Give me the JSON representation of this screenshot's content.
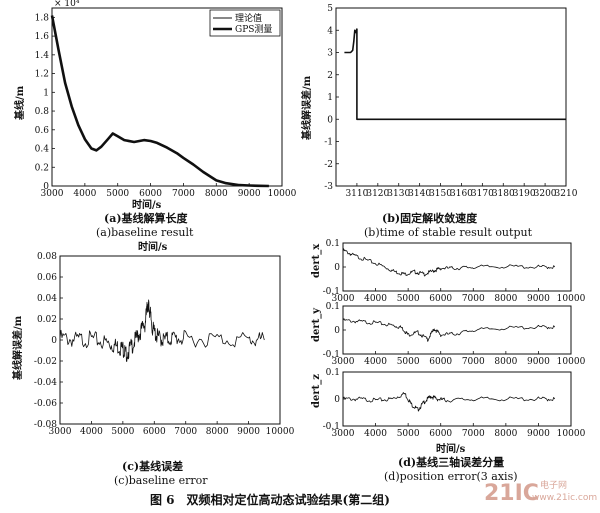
{
  "figure_caption": "图 6　双频相对定位高动态试验结果(第二组)",
  "watermark": {
    "brand": "21IC",
    "cn": "电子网",
    "url": "www.21ic.com"
  },
  "colors": {
    "line": "#111111",
    "background": "#ffffff",
    "watermark": "#d9a79a"
  },
  "panels": {
    "a": {
      "caption_cn": "(a)基线解算长度",
      "caption_en": "(a)baseline result",
      "scale_note": "× 10⁴",
      "legend": [
        "理论值",
        "GPS测量"
      ]
    },
    "b": {
      "caption_cn": "(b)固定解收敛速度",
      "caption_en": "(b)time of stable result output"
    },
    "c": {
      "caption_cn": "(c)基线误差",
      "caption_en": "(c)baseline error"
    },
    "d": {
      "caption_cn": "(d)基线三轴误差分量",
      "caption_en": "(d)position error(3 axis)"
    }
  },
  "chart_data": [
    {
      "id": "a",
      "type": "line",
      "xlabel": "时间/s",
      "ylabel": "基线/m",
      "xlim": [
        3000,
        10000
      ],
      "ylim": [
        0,
        1.9
      ],
      "xticks": [
        "3000",
        "4000",
        "5000",
        "6000",
        "7000",
        "8000",
        "9000",
        "10000"
      ],
      "yticks": [
        "0",
        "0.2",
        "0.4",
        "0.6",
        "0.8",
        "1",
        "1.2",
        "1.4",
        "1.6",
        "1.8"
      ],
      "series": [
        {
          "name": "理论值",
          "x": [
            3000,
            3200,
            3400,
            3600,
            3800,
            4000,
            4200,
            4350,
            4500,
            4700,
            4850,
            5000,
            5200,
            5500,
            5800,
            6000,
            6200,
            6500,
            6800,
            7000,
            7300,
            7600,
            8000,
            8300,
            8700,
            9000,
            9300,
            9600
          ],
          "y": [
            1.82,
            1.45,
            1.1,
            0.85,
            0.65,
            0.5,
            0.4,
            0.38,
            0.42,
            0.5,
            0.56,
            0.53,
            0.49,
            0.47,
            0.49,
            0.48,
            0.46,
            0.41,
            0.35,
            0.3,
            0.23,
            0.15,
            0.06,
            0.03,
            0.01,
            0.005,
            0.002,
            0
          ]
        },
        {
          "name": "GPS测量",
          "x": [
            3000,
            3200,
            3400,
            3600,
            3800,
            4000,
            4200,
            4350,
            4500,
            4700,
            4850,
            5000,
            5200,
            5500,
            5800,
            6000,
            6200,
            6500,
            6800,
            7000,
            7300,
            7600,
            8000,
            8300,
            8700,
            9000,
            9300,
            9600
          ],
          "y": [
            1.82,
            1.45,
            1.1,
            0.85,
            0.65,
            0.5,
            0.4,
            0.38,
            0.42,
            0.5,
            0.56,
            0.53,
            0.49,
            0.47,
            0.49,
            0.48,
            0.46,
            0.41,
            0.35,
            0.3,
            0.23,
            0.15,
            0.06,
            0.03,
            0.01,
            0.005,
            0.002,
            0
          ]
        }
      ],
      "legend": "top-right"
    },
    {
      "id": "b",
      "type": "line",
      "xlabel": "",
      "ylabel": "基线解误差/m",
      "xlim": [
        3100,
        3210
      ],
      "ylim": [
        -3,
        5
      ],
      "xticks": [
        "3110",
        "3120",
        "3130",
        "3140",
        "3150",
        "3160",
        "3170",
        "3180",
        "3190",
        "3200",
        "3210"
      ],
      "yticks": [
        "-3",
        "-2",
        "-1",
        "0",
        "1",
        "2",
        "3",
        "4",
        "5"
      ],
      "series": [
        {
          "x": [
            3104,
            3106,
            3107,
            3108,
            3108.5,
            3109,
            3109.5,
            3110,
            3110,
            3111,
            3210
          ],
          "y": [
            3.0,
            3.0,
            3.0,
            3.1,
            3.5,
            4.0,
            3.9,
            4.05,
            0,
            0,
            0
          ]
        }
      ]
    },
    {
      "id": "c",
      "type": "line",
      "xlabel": "时间/s",
      "ylabel": "基线解误差/m",
      "xlim": [
        3000,
        10000
      ],
      "ylim": [
        -0.08,
        0.08
      ],
      "xticks": [
        "3000",
        "4000",
        "5000",
        "6000",
        "7000",
        "8000",
        "9000",
        "10000"
      ],
      "yticks": [
        "-0.08",
        "-0.06",
        "-0.04",
        "-0.02",
        "0",
        "0.02",
        "0.04",
        "0.06",
        "0.08"
      ],
      "series": [
        {
          "x": [
            3000,
            3500,
            4000,
            4500,
            4800,
            5000,
            5100,
            5300,
            5500,
            5700,
            5800,
            5850,
            5950,
            6100,
            6300,
            6600,
            7000,
            8000,
            9000,
            9500
          ],
          "y": [
            0.002,
            0.0,
            0.001,
            -0.003,
            -0.006,
            -0.008,
            -0.014,
            -0.005,
            0.005,
            0.015,
            0.035,
            0.028,
            0.01,
            0.003,
            0.0,
            0.002,
            0.001,
            0.001,
            0.0,
            0.0
          ]
        }
      ]
    },
    {
      "id": "d",
      "type": "line",
      "xlabel": "时间/s",
      "subplots": [
        {
          "ylabel": "dert_x",
          "xlim": [
            3000,
            10000
          ],
          "ylim": [
            -0.1,
            0.1
          ],
          "yticks": [
            "-0.1",
            "0",
            "0.1"
          ],
          "x": [
            3000,
            3300,
            3700,
            4200,
            4600,
            4900,
            5200,
            5500,
            5800,
            6000,
            6500,
            7000,
            8000,
            9000,
            9500
          ],
          "y": [
            0.07,
            0.05,
            0.03,
            0.005,
            -0.02,
            -0.03,
            -0.02,
            -0.03,
            -0.015,
            -0.005,
            -0.005,
            0.0,
            0.002,
            0.0,
            0.0
          ]
        },
        {
          "ylabel": "dert_y",
          "xlim": [
            3000,
            10000
          ],
          "ylim": [
            -0.1,
            0.1
          ],
          "yticks": [
            "-0.1",
            "0",
            "0.1"
          ],
          "x": [
            3000,
            3500,
            4000,
            4500,
            4800,
            5000,
            5300,
            5600,
            5800,
            6000,
            6500,
            7000,
            8000,
            9000,
            9500
          ],
          "y": [
            0.04,
            0.035,
            0.03,
            0.02,
            0.01,
            -0.02,
            -0.01,
            -0.04,
            0.005,
            -0.02,
            -0.015,
            0.0,
            0.008,
            0.012,
            0.012
          ]
        },
        {
          "ylabel": "dert_z",
          "xlim": [
            3000,
            10000
          ],
          "ylim": [
            -0.1,
            0.1
          ],
          "yticks": [
            "-0.1",
            "0",
            "0.1"
          ],
          "x": [
            3000,
            3500,
            4000,
            4500,
            4900,
            5100,
            5300,
            5500,
            5700,
            5900,
            6200,
            7000,
            8000,
            9000,
            9500
          ],
          "y": [
            0.0,
            0.0,
            -0.005,
            0.0,
            0.02,
            -0.02,
            -0.04,
            -0.01,
            0.01,
            0.0,
            -0.005,
            0.0,
            0.0,
            0.0,
            0.0
          ]
        }
      ],
      "xticks": [
        "3000",
        "4000",
        "5000",
        "6000",
        "7000",
        "8000",
        "9000",
        "10000"
      ]
    }
  ]
}
